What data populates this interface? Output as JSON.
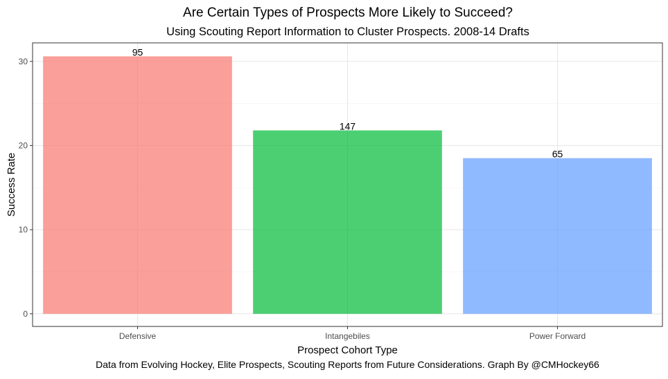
{
  "chart_data": {
    "type": "bar",
    "title": "Are Certain Types of Prospects More Likely to Succeed?",
    "subtitle": "Using Scouting Report Information to Cluster Prospects. 2008-14 Drafts",
    "caption": "Data from Evolving Hockey, Elite Prospects, Scouting Reports from Future Considerations. Graph By @CMHockey66",
    "xlabel": "Prospect Cohort Type",
    "ylabel": "Success Rate",
    "categories": [
      "Defensive",
      "Intangebiles",
      "Power Forward"
    ],
    "values": [
      30.6,
      21.8,
      18.5
    ],
    "bar_labels": [
      "95",
      "147",
      "65"
    ],
    "colors": [
      "#F8766D",
      "#00BA38",
      "#619CFF"
    ],
    "ylim": [
      -1.5,
      32.2
    ],
    "yticks": [
      0,
      10,
      20,
      30
    ],
    "grid": true,
    "legend": "none"
  }
}
